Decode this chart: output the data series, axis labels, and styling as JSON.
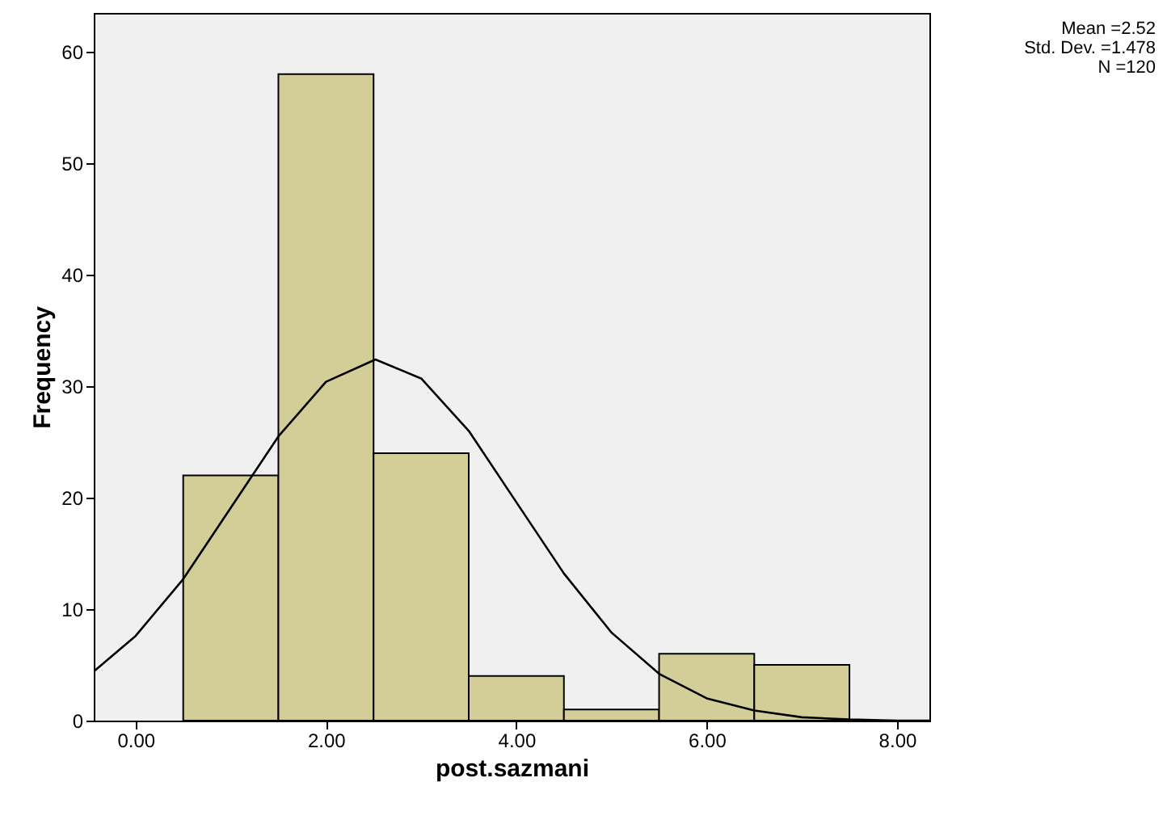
{
  "chart_data": {
    "type": "histogram",
    "xlabel": "post.sazmani",
    "ylabel": "Frequency",
    "bins": [
      0.5,
      1.5,
      2.5,
      3.5,
      4.5,
      5.5,
      6.5,
      7.5
    ],
    "series": [
      {
        "color": "#d3ce97",
        "values": [
          22,
          58,
          24,
          4,
          1,
          6,
          5
        ]
      },
      {
        "type": "line",
        "color": "#000000",
        "x": [
          -0.44,
          0,
          0.5,
          1,
          1.5,
          2,
          2.52,
          3,
          3.5,
          4,
          4.5,
          5,
          5.5,
          6,
          6.5,
          7,
          7.5,
          8,
          8.34
        ],
        "values": [
          4.4,
          7.6,
          12.7,
          19.1,
          25.5,
          30.4,
          32.4,
          30.7,
          26.0,
          19.6,
          13.2,
          7.9,
          4.2,
          2.0,
          0.9,
          0.3,
          0.1,
          0.0,
          0.0
        ]
      }
    ],
    "xlim": [
      -0.44,
      8.34
    ],
    "ylim": [
      0,
      63.5
    ],
    "xticks": [
      {
        "value": 0,
        "label": "0.00"
      },
      {
        "value": 2,
        "label": "2.00"
      },
      {
        "value": 4,
        "label": "4.00"
      },
      {
        "value": 6,
        "label": "6.00"
      },
      {
        "value": 8,
        "label": "8.00"
      }
    ],
    "yticks": [
      0,
      10,
      20,
      30,
      40,
      50,
      60
    ],
    "grid": false,
    "annotations": [
      "Mean =2.52",
      "Std. Dev. =1.478",
      "N =120"
    ]
  }
}
